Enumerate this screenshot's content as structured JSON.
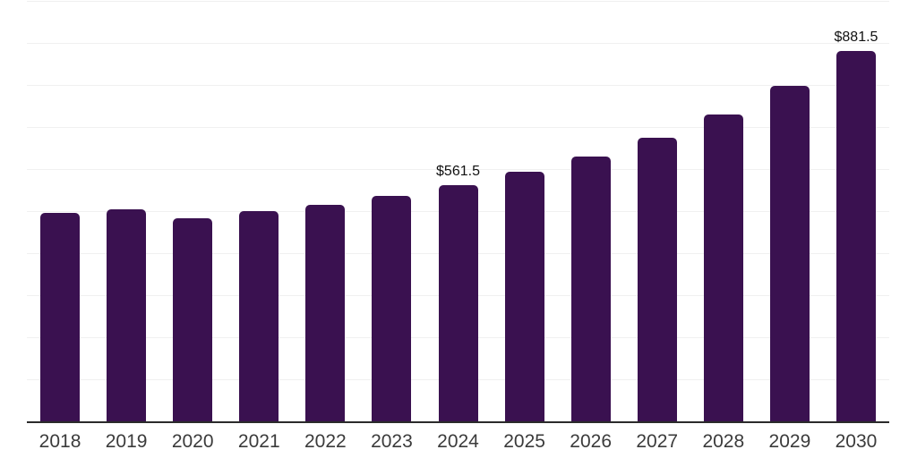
{
  "chart": {
    "background": "#ffffff",
    "bar_color": "#3A1150",
    "gridline_color": "#f0f0f0",
    "axis_line_color": "#2b2b2b",
    "x_label_color": "#3b3b3b",
    "data_label_color": "#111111"
  },
  "chart_data": {
    "type": "bar",
    "title": "",
    "xlabel": "",
    "ylabel": "",
    "categories": [
      "2018",
      "2019",
      "2020",
      "2021",
      "2022",
      "2023",
      "2024",
      "2025",
      "2026",
      "2027",
      "2028",
      "2029",
      "2030"
    ],
    "values": [
      496,
      504,
      483,
      499,
      515,
      536,
      561.5,
      594,
      630,
      675,
      729,
      797,
      881.5
    ],
    "data_labels": [
      null,
      null,
      null,
      null,
      null,
      null,
      "$561.5",
      null,
      null,
      null,
      null,
      null,
      "$881.5"
    ],
    "ylim": [
      0,
      1000
    ],
    "gridline_step": 100,
    "grid": true,
    "legend": false
  }
}
